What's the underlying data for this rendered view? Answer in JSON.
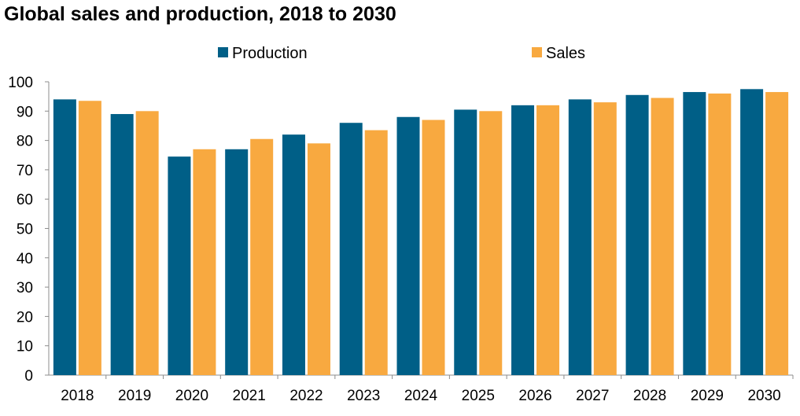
{
  "chart_data": {
    "type": "bar",
    "title": "Global sales and production, 2018 to 2030",
    "xlabel": "",
    "ylabel": "",
    "ylim": [
      0,
      100
    ],
    "yticks": [
      0,
      10,
      20,
      30,
      40,
      50,
      60,
      70,
      80,
      90,
      100
    ],
    "grid": false,
    "legend_position": "top",
    "categories": [
      "2018",
      "2019",
      "2020",
      "2021",
      "2022",
      "2023",
      "2024",
      "2025",
      "2026",
      "2027",
      "2028",
      "2029",
      "2030"
    ],
    "series": [
      {
        "name": "Production",
        "color": "#005f87",
        "values": [
          94,
          89,
          74.5,
          77,
          82,
          86,
          88,
          90.5,
          92,
          94,
          95.5,
          96.5,
          97.5
        ]
      },
      {
        "name": "Sales",
        "color": "#f8a940",
        "values": [
          93.5,
          90,
          77,
          80.5,
          79,
          83.5,
          87,
          90,
          92,
          93,
          94.5,
          96,
          96.5
        ]
      }
    ]
  }
}
